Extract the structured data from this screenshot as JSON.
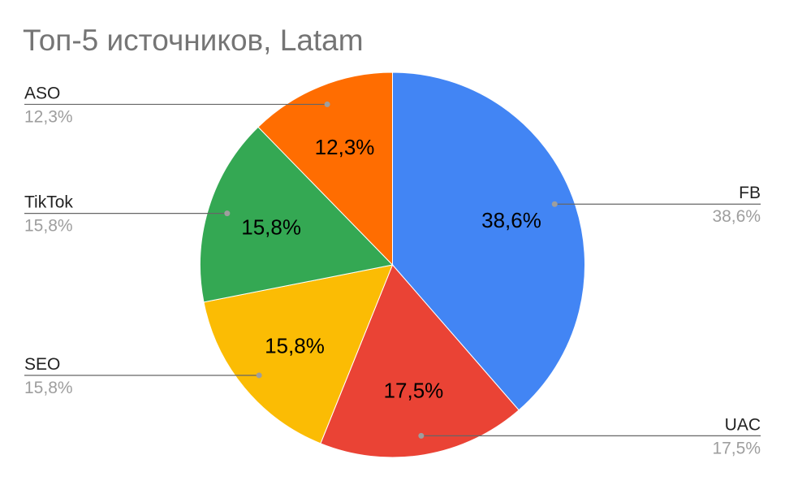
{
  "chart_data": {
    "type": "pie",
    "title": "Топ-5 источников, Latam",
    "slices": [
      {
        "name": "FB",
        "value": 38.6,
        "label": "38,6%",
        "color": "#4285F4"
      },
      {
        "name": "UAC",
        "value": 17.5,
        "label": "17,5%",
        "color": "#EA4335"
      },
      {
        "name": "SEO",
        "value": 15.8,
        "label": "15,8%",
        "color": "#FBBC04"
      },
      {
        "name": "TikTok",
        "value": 15.8,
        "label": "15,8%",
        "color": "#34A853"
      },
      {
        "name": "ASO",
        "value": 12.3,
        "label": "12,3%",
        "color": "#FF6D01"
      }
    ],
    "start_angle": "12 o'clock",
    "direction": "clockwise",
    "legend": "callout labels beside slices"
  }
}
